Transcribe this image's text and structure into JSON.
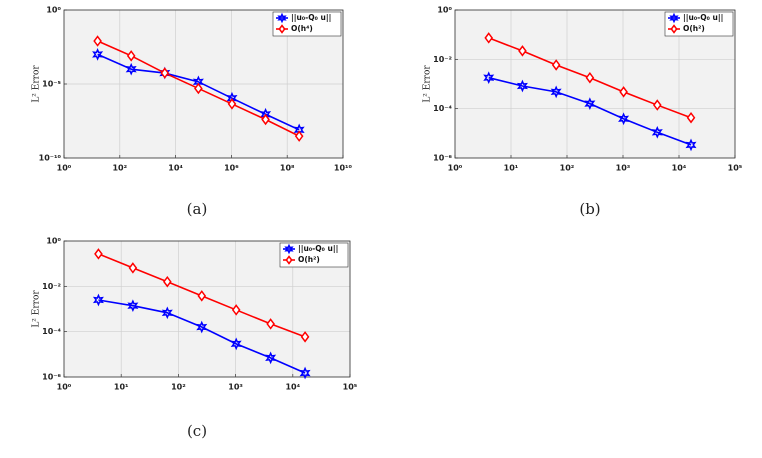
{
  "chart_data": [
    {
      "type": "line",
      "caption": "(a)",
      "ylabel": "L² Error",
      "xscale": "log",
      "yscale": "log",
      "grid": true,
      "legend": "upper right",
      "xlim": [
        1,
        10000000000
      ],
      "ylim": [
        1e-10,
        1
      ],
      "xticks": [
        {
          "value": 1,
          "label": "10⁰"
        },
        {
          "value": 100,
          "label": "10²"
        },
        {
          "value": 10000,
          "label": "10⁴"
        },
        {
          "value": 1000000,
          "label": "10⁶"
        },
        {
          "value": 100000000,
          "label": "10⁸"
        },
        {
          "value": 10000000000,
          "label": "10¹⁰"
        }
      ],
      "yticks": [
        {
          "value": 1e-10,
          "label": "10⁻¹⁰"
        },
        {
          "value": 1e-05,
          "label": "10⁻⁵"
        },
        {
          "value": 1,
          "label": "10⁰"
        }
      ],
      "series": [
        {
          "name": "||u₀-Q₀ u||",
          "color": "#0000ff",
          "marker": "hexagram",
          "x": [
            16,
            256,
            4096,
            65536,
            1048576,
            16777216,
            268435456
          ],
          "values": [
            0.001,
            0.0001,
            5.5e-05,
            1.4e-05,
            1.1e-06,
            9e-08,
            8e-09
          ]
        },
        {
          "name": "O(h⁴)",
          "color": "#ff0000",
          "marker": "diamond",
          "x": [
            16,
            256,
            4096,
            65536,
            1048576,
            16777216,
            268435456
          ],
          "values": [
            0.008,
            0.0008,
            5.5e-05,
            5e-06,
            4.5e-07,
            4e-08,
            3e-09
          ]
        }
      ]
    },
    {
      "type": "line",
      "caption": "(b)",
      "ylabel": "L² Error",
      "xscale": "log",
      "yscale": "log",
      "grid": true,
      "legend": "upper right",
      "xlim": [
        1,
        100000
      ],
      "ylim": [
        1e-06,
        1
      ],
      "xticks": [
        {
          "value": 1,
          "label": "10⁰"
        },
        {
          "value": 10,
          "label": "10¹"
        },
        {
          "value": 100,
          "label": "10²"
        },
        {
          "value": 1000,
          "label": "10³"
        },
        {
          "value": 10000,
          "label": "10⁴"
        },
        {
          "value": 100000,
          "label": "10⁵"
        }
      ],
      "yticks": [
        {
          "value": 1e-06,
          "label": "10⁻⁶"
        },
        {
          "value": 0.0001,
          "label": "10⁻⁴"
        },
        {
          "value": 0.01,
          "label": "10⁻²"
        },
        {
          "value": 1,
          "label": "10⁰"
        }
      ],
      "series": [
        {
          "name": "||u₀-Q₀ u||",
          "color": "#0000ff",
          "marker": "hexagram",
          "x": [
            4,
            16,
            64,
            256,
            1024,
            4096,
            16384
          ],
          "values": [
            0.0018,
            0.00083,
            0.00048,
            0.00016,
            3.9e-05,
            1.1e-05,
            3.4e-06
          ]
        },
        {
          "name": "O(h²)",
          "color": "#ff0000",
          "marker": "diamond",
          "x": [
            4,
            16,
            64,
            256,
            1024,
            4096,
            16384
          ],
          "values": [
            0.074,
            0.022,
            0.0059,
            0.0018,
            0.00048,
            0.00014,
            4.3e-05
          ]
        }
      ]
    },
    {
      "type": "line",
      "caption": "(c)",
      "ylabel": "L² Error",
      "xscale": "log",
      "yscale": "log",
      "grid": true,
      "legend": "upper right",
      "xlim": [
        1,
        100000
      ],
      "ylim": [
        1e-06,
        1
      ],
      "xticks": [
        {
          "value": 1,
          "label": "10⁰"
        },
        {
          "value": 10,
          "label": "10¹"
        },
        {
          "value": 100,
          "label": "10²"
        },
        {
          "value": 1000,
          "label": "10³"
        },
        {
          "value": 10000,
          "label": "10⁴"
        },
        {
          "value": 100000,
          "label": "10⁵"
        }
      ],
      "yticks": [
        {
          "value": 1e-06,
          "label": "10⁻⁶"
        },
        {
          "value": 0.0001,
          "label": "10⁻⁴"
        },
        {
          "value": 0.01,
          "label": "10⁻²"
        },
        {
          "value": 1,
          "label": "10⁰"
        }
      ],
      "series": [
        {
          "name": "||u₀-Q₀ u||",
          "color": "#0000ff",
          "marker": "hexagram",
          "x": [
            4,
            16,
            64,
            256,
            1024,
            4096,
            16384
          ],
          "values": [
            0.0025,
            0.0014,
            0.00068,
            0.00016,
            2.9e-05,
            7e-06,
            1.5e-06
          ]
        },
        {
          "name": "O(h²)",
          "color": "#ff0000",
          "marker": "diamond",
          "x": [
            4,
            16,
            64,
            256,
            1024,
            4096,
            16384
          ],
          "values": [
            0.27,
            0.065,
            0.016,
            0.0038,
            0.00091,
            0.00022,
            5.9e-05
          ]
        }
      ]
    }
  ]
}
